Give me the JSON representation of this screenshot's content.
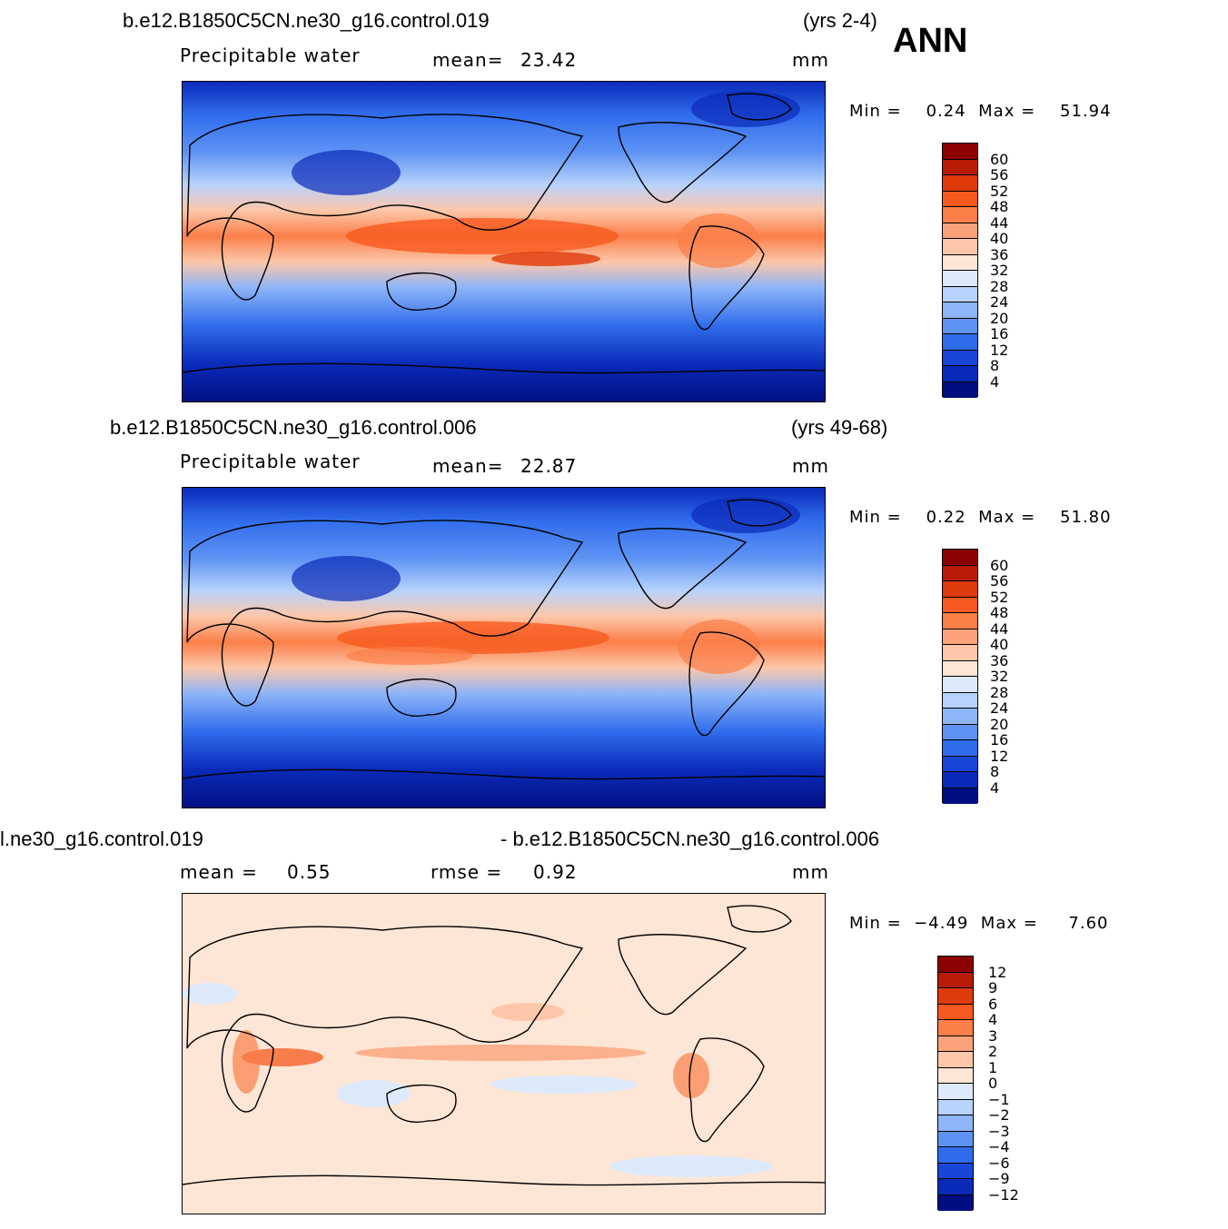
{
  "season": "ANN",
  "panels": [
    {
      "case": "b.e12.B1850C5CN.ne30_g16.control.019",
      "years": "(yrs 2-4)",
      "variable": "Precipitable  water",
      "stat1_label": "mean=",
      "stat1_value": "23.42",
      "units": "mm",
      "minmax": "Min =    0.24  Max =    51.94",
      "levels": [
        "60",
        "56",
        "52",
        "48",
        "44",
        "40",
        "36",
        "32",
        "28",
        "24",
        "20",
        "16",
        "12",
        "8",
        "4"
      ],
      "colors": [
        "#8b0000",
        "#b81c06",
        "#de3a0a",
        "#f65a1e",
        "#fb7f49",
        "#fca27a",
        "#fdc7aa",
        "#fee6d6",
        "#dceafc",
        "#b8d3fb",
        "#8eb5f8",
        "#5e93f4",
        "#2f6cec",
        "#1746d8",
        "#0a2ab8",
        "#000e80"
      ]
    },
    {
      "case": "b.e12.B1850C5CN.ne30_g16.control.006",
      "years": "(yrs 49-68)",
      "variable": "Precipitable  water",
      "stat1_label": "mean=",
      "stat1_value": "22.87",
      "units": "mm",
      "minmax": "Min =    0.22  Max =    51.80",
      "levels": [
        "60",
        "56",
        "52",
        "48",
        "44",
        "40",
        "36",
        "32",
        "28",
        "24",
        "20",
        "16",
        "12",
        "8",
        "4"
      ],
      "colors": [
        "#8b0000",
        "#b81c06",
        "#de3a0a",
        "#f65a1e",
        "#fb7f49",
        "#fca27a",
        "#fdc7aa",
        "#fee6d6",
        "#dceafc",
        "#b8d3fb",
        "#8eb5f8",
        "#5e93f4",
        "#2f6cec",
        "#1746d8",
        "#0a2ab8",
        "#000e80"
      ]
    },
    {
      "case_left": "l.ne30_g16.control.019",
      "case_right": "- b.e12.B1850C5CN.ne30_g16.control.006",
      "mean_label": "mean =",
      "mean_value": "0.55",
      "rmse_label": "rmse =",
      "rmse_value": "0.92",
      "units": "mm",
      "minmax": "Min =  −4.49  Max =     7.60",
      "levels": [
        "12",
        "9",
        "6",
        "4",
        "3",
        "2",
        "1",
        "0",
        "−1",
        "−2",
        "−3",
        "−4",
        "−6",
        "−9",
        "−12"
      ],
      "colors": [
        "#8b0000",
        "#b81c06",
        "#de3a0a",
        "#f65a1e",
        "#fb7f49",
        "#fca27a",
        "#fdc7aa",
        "#fee6d6",
        "#dceafc",
        "#b8d3fb",
        "#8eb5f8",
        "#5e93f4",
        "#2f6cec",
        "#1746d8",
        "#0a2ab8",
        "#000e80"
      ]
    }
  ]
}
